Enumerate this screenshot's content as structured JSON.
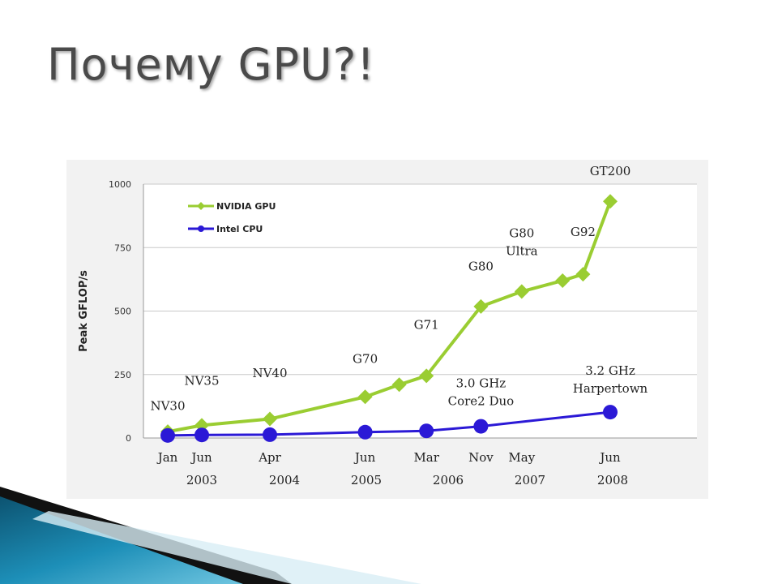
{
  "title": "Почему GPU?!",
  "chart_data": {
    "type": "line",
    "ylabel": "Peak GFLOP/s",
    "ylim": [
      0,
      1000
    ],
    "yticks": [
      "0",
      "250",
      "500",
      "750",
      "1000"
    ],
    "grid": true,
    "legend_position": "top-left",
    "months": [
      "Jan",
      "Jun",
      "Apr",
      "Jun",
      "Mar",
      "Nov",
      "May",
      "Jun"
    ],
    "years": [
      "2003",
      "2004",
      "2005",
      "2006",
      "2007",
      "2008"
    ],
    "series": [
      {
        "name": "NVIDIA GPU",
        "color": "#9acd32",
        "points": [
          {
            "x": "2003-01",
            "y": 25
          },
          {
            "x": "2003-06",
            "y": 50
          },
          {
            "x": "2004-04",
            "y": 75
          },
          {
            "x": "2005-06",
            "y": 162
          },
          {
            "x": "2005-11",
            "y": 210
          },
          {
            "x": "2006-03",
            "y": 245
          },
          {
            "x": "2006-11",
            "y": 518
          },
          {
            "x": "2007-05",
            "y": 577
          },
          {
            "x": "2007-11",
            "y": 620
          },
          {
            "x": "2008-02",
            "y": 645
          },
          {
            "x": "2008-06",
            "y": 932
          }
        ]
      },
      {
        "name": "Intel CPU",
        "color": "#2b19d6",
        "points": [
          {
            "x": "2003-01",
            "y": 10
          },
          {
            "x": "2003-06",
            "y": 12
          },
          {
            "x": "2004-04",
            "y": 13
          },
          {
            "x": "2005-06",
            "y": 23
          },
          {
            "x": "2006-03",
            "y": 28
          },
          {
            "x": "2006-11",
            "y": 46
          },
          {
            "x": "2008-06",
            "y": 102
          }
        ]
      }
    ],
    "annotations": [
      {
        "lines": [
          "NV30"
        ],
        "x": "2003-01",
        "y": 110
      },
      {
        "lines": [
          "NV35"
        ],
        "x": "2003-06",
        "y": 210
      },
      {
        "lines": [
          "NV40"
        ],
        "x": "2004-04",
        "y": 240
      },
      {
        "lines": [
          "G70"
        ],
        "x": "2005-06",
        "y": 295
      },
      {
        "lines": [
          "G71"
        ],
        "x": "2006-03",
        "y": 430
      },
      {
        "lines": [
          "G80"
        ],
        "x": "2006-11",
        "y": 660
      },
      {
        "lines": [
          "G80",
          "Ultra"
        ],
        "x": "2007-05",
        "y": 790
      },
      {
        "lines": [
          "G92"
        ],
        "x": "2008-02",
        "y": 795
      },
      {
        "lines": [
          "GT200"
        ],
        "x": "2008-06",
        "y": 1035
      },
      {
        "lines": [
          "3.0 GHz",
          "Core2 Duo"
        ],
        "x": "2006-11",
        "y": 200
      },
      {
        "lines": [
          "3.2 GHz",
          "Harpertown"
        ],
        "x": "2008-06",
        "y": 250
      }
    ]
  }
}
